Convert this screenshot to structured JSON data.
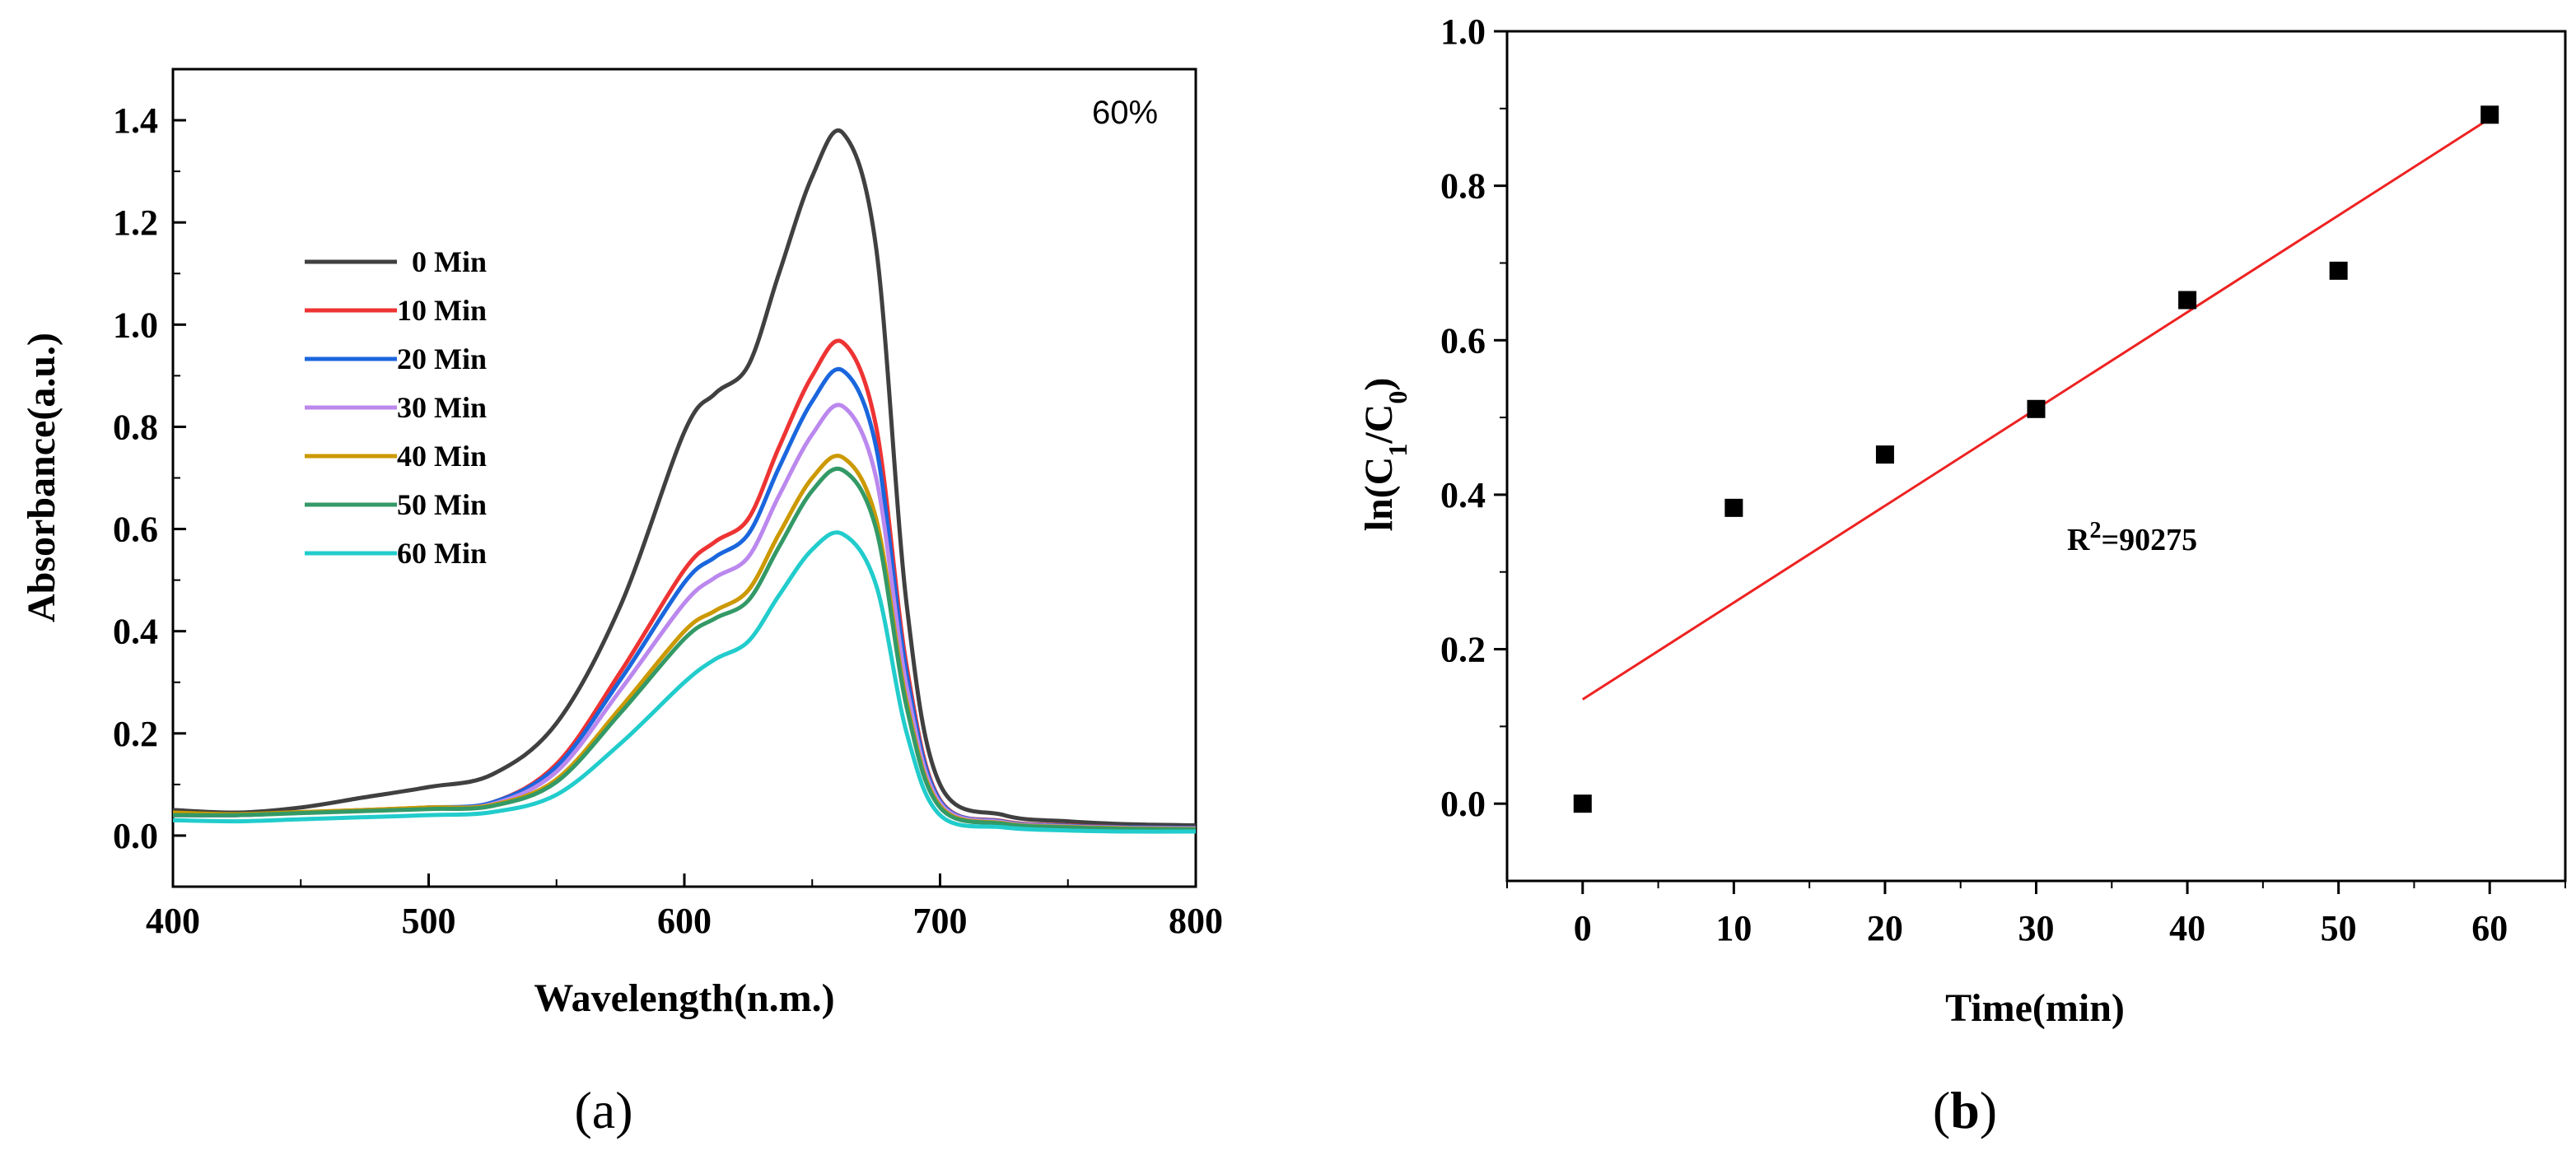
{
  "chart_data": [
    {
      "panel": "a",
      "type": "line",
      "title": "",
      "annotation": "60%",
      "xlabel": "Wavelength(n.m.)",
      "ylabel": "Absorbance(a.u.)",
      "xlim": [
        400,
        800
      ],
      "ylim": [
        -0.1,
        1.5
      ],
      "xticks": [
        400,
        500,
        600,
        700,
        800
      ],
      "yticks": [
        0.0,
        0.2,
        0.4,
        0.6,
        0.8,
        1.0,
        1.2,
        1.4
      ],
      "ytick_labels": [
        "0.0",
        "0.2",
        "0.4",
        "0.6",
        "0.8",
        "1.0",
        "1.2",
        "1.4"
      ],
      "legend_position": "upper-left",
      "x": [
        400,
        425,
        450,
        475,
        500,
        525,
        550,
        575,
        600,
        612,
        625,
        637,
        650,
        662,
        675,
        687,
        700,
        725,
        750,
        775,
        800
      ],
      "series": [
        {
          "name": "0 Min",
          "color": "#404040",
          "values": [
            0.05,
            0.045,
            0.055,
            0.075,
            0.095,
            0.12,
            0.22,
            0.45,
            0.79,
            0.865,
            0.92,
            1.1,
            1.29,
            1.375,
            1.15,
            0.45,
            0.1,
            0.04,
            0.028,
            0.022,
            0.02
          ]
        },
        {
          "name": "10 Min",
          "color": "#ee3333",
          "values": [
            0.04,
            0.04,
            0.045,
            0.05,
            0.055,
            0.065,
            0.14,
            0.32,
            0.52,
            0.575,
            0.62,
            0.76,
            0.9,
            0.965,
            0.8,
            0.33,
            0.07,
            0.028,
            0.02,
            0.016,
            0.015
          ]
        },
        {
          "name": "20 Min",
          "color": "#1a66dd",
          "values": [
            0.04,
            0.04,
            0.045,
            0.05,
            0.055,
            0.065,
            0.135,
            0.305,
            0.495,
            0.545,
            0.59,
            0.72,
            0.85,
            0.91,
            0.76,
            0.315,
            0.068,
            0.027,
            0.019,
            0.016,
            0.015
          ]
        },
        {
          "name": "30 Min",
          "color": "#bb88ee",
          "values": [
            0.04,
            0.04,
            0.045,
            0.05,
            0.055,
            0.062,
            0.125,
            0.285,
            0.455,
            0.505,
            0.545,
            0.665,
            0.785,
            0.84,
            0.7,
            0.29,
            0.064,
            0.026,
            0.018,
            0.015,
            0.014
          ]
        },
        {
          "name": "40 Min",
          "color": "#cc9900",
          "values": [
            0.045,
            0.042,
            0.046,
            0.05,
            0.055,
            0.06,
            0.11,
            0.25,
            0.4,
            0.44,
            0.48,
            0.59,
            0.7,
            0.74,
            0.62,
            0.26,
            0.058,
            0.024,
            0.017,
            0.014,
            0.013
          ]
        },
        {
          "name": "50 Min",
          "color": "#339966",
          "values": [
            0.04,
            0.04,
            0.044,
            0.048,
            0.052,
            0.058,
            0.105,
            0.24,
            0.385,
            0.425,
            0.46,
            0.565,
            0.675,
            0.715,
            0.6,
            0.25,
            0.055,
            0.023,
            0.016,
            0.013,
            0.012
          ]
        },
        {
          "name": "60 Min",
          "color": "#22cccc",
          "values": [
            0.03,
            0.028,
            0.032,
            0.036,
            0.04,
            0.046,
            0.08,
            0.18,
            0.3,
            0.345,
            0.38,
            0.47,
            0.56,
            0.59,
            0.49,
            0.2,
            0.04,
            0.016,
            0.01,
            0.008,
            0.008
          ]
        }
      ]
    },
    {
      "panel": "b",
      "type": "scatter",
      "title": "",
      "xlabel": "Time(min)",
      "ylabel": "ln(C1/C0)",
      "ylabel_main": "ln(C",
      "ylabel_sub1": "1",
      "ylabel_mid": "/C",
      "ylabel_sub0": "0",
      "ylabel_end": ")",
      "xlim": [
        -5,
        65
      ],
      "ylim": [
        -0.1,
        1.0
      ],
      "xticks": [
        0,
        10,
        20,
        30,
        40,
        50,
        60
      ],
      "yticks": [
        0.0,
        0.2,
        0.4,
        0.6,
        0.8,
        1.0
      ],
      "ytick_labels": [
        "0.0",
        "0.2",
        "0.4",
        "0.6",
        "0.8",
        "1.0"
      ],
      "x": [
        0,
        10,
        20,
        30,
        40,
        50,
        60
      ],
      "y": [
        0.0,
        0.383,
        0.452,
        0.511,
        0.652,
        0.69,
        0.892
      ],
      "point_color": "#000000",
      "fit": {
        "x": [
          0,
          60
        ],
        "y": [
          0.135,
          0.887
        ],
        "color": "#ee2222"
      },
      "annotation_main": "R",
      "annotation_sup": "2",
      "annotation_rest": "=90275"
    }
  ],
  "panel_labels": {
    "a": {
      "open": "(",
      "letter": "a",
      "close": ")"
    },
    "b": {
      "open": "(",
      "letter": "b",
      "close": ")"
    }
  }
}
